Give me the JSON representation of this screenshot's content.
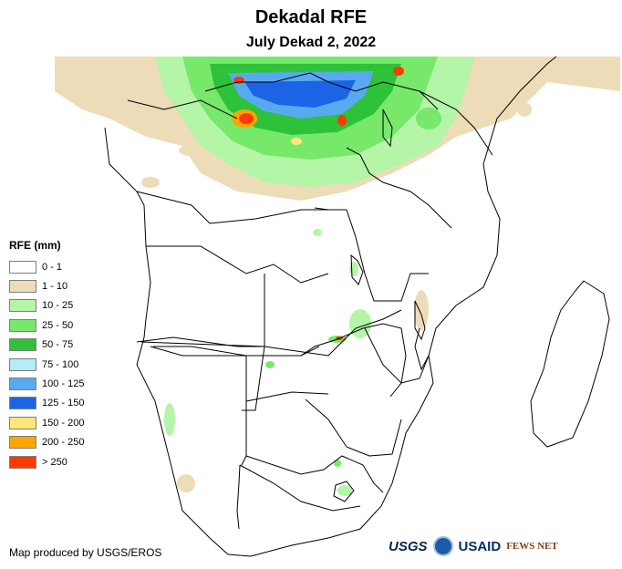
{
  "title": "Dekadal RFE",
  "subtitle": "July Dekad 2, 2022",
  "legend": {
    "title": "RFE (mm)",
    "items": [
      {
        "label": "0 - 1",
        "color": "#ffffff"
      },
      {
        "label": "1 - 10",
        "color": "#ecdcb8"
      },
      {
        "label": "10 - 25",
        "color": "#b4f5a8"
      },
      {
        "label": "25 - 50",
        "color": "#78e86a"
      },
      {
        "label": "50 - 75",
        "color": "#2dc23a"
      },
      {
        "label": "75 - 100",
        "color": "#b4ecf5"
      },
      {
        "label": "100 - 125",
        "color": "#58aaf0"
      },
      {
        "label": "125 - 150",
        "color": "#1c64e6"
      },
      {
        "label": "150 - 200",
        "color": "#ffe678"
      },
      {
        "label": "200 - 250",
        "color": "#ffa500"
      },
      {
        "label": "> 250",
        "color": "#ff3a00"
      }
    ]
  },
  "credit": "Map produced by USGS/EROS",
  "logos": [
    "USGS",
    "NOAA",
    "USAID",
    "FEWS NET"
  ]
}
